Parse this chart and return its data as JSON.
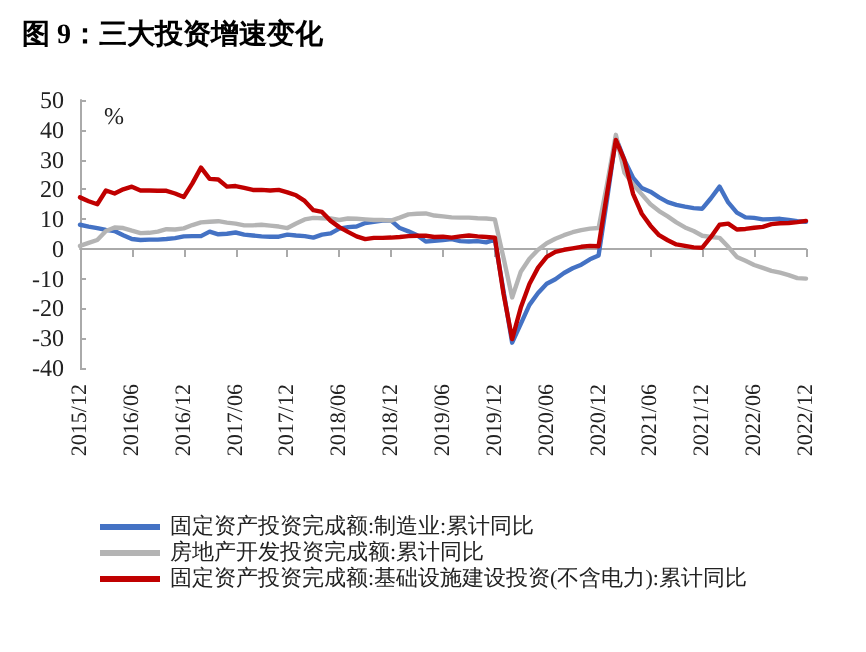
{
  "chart_data": {
    "type": "line",
    "title": "图 9：三大投资增速变化",
    "ylabel": "%",
    "categories": [
      "2015/12",
      null,
      null,
      null,
      null,
      null,
      "2016/06",
      null,
      null,
      null,
      null,
      null,
      "2016/12",
      null,
      null,
      null,
      null,
      null,
      "2017/06",
      null,
      null,
      null,
      null,
      null,
      "2017/12",
      null,
      null,
      null,
      null,
      null,
      "2018/06",
      null,
      null,
      null,
      null,
      null,
      "2018/12",
      null,
      null,
      null,
      null,
      null,
      "2019/06",
      null,
      null,
      null,
      null,
      null,
      "2019/12",
      null,
      null,
      null,
      null,
      null,
      "2020/06",
      null,
      null,
      null,
      null,
      null,
      "2020/12",
      null,
      null,
      null,
      null,
      null,
      "2021/06",
      null,
      null,
      null,
      null,
      null,
      "2021/12",
      null,
      null,
      null,
      null,
      null,
      "2022/06",
      null,
      null,
      null,
      null,
      null,
      "2022/12"
    ],
    "series": [
      {
        "name": "固定资产投资完成额:制造业:累计同比",
        "color": "#4472c4",
        "values": [
          8.1,
          7.5,
          7.0,
          6.4,
          6.0,
          4.6,
          3.3,
          3.0,
          3.1,
          3.1,
          3.3,
          3.6,
          4.2,
          4.3,
          4.3,
          5.8,
          4.9,
          5.1,
          5.5,
          4.8,
          4.5,
          4.2,
          4.1,
          4.1,
          4.8,
          4.5,
          4.3,
          3.8,
          4.8,
          5.2,
          6.8,
          7.3,
          7.5,
          8.7,
          9.1,
          9.5,
          9.5,
          7.0,
          5.9,
          4.6,
          2.5,
          2.7,
          3.0,
          3.3,
          2.6,
          2.5,
          2.6,
          2.2,
          3.1,
          -14.2,
          -31.5,
          -25.2,
          -18.8,
          -14.8,
          -11.7,
          -10.2,
          -8.1,
          -6.5,
          -5.3,
          -3.5,
          -2.2,
          17,
          37.3,
          29.8,
          23.8,
          20.4,
          19.2,
          17.3,
          15.7,
          14.8,
          14.2,
          13.7,
          13.5,
          17,
          20.9,
          15.6,
          12.2,
          10.6,
          10.4,
          9.9,
          10.0,
          10.1,
          9.7,
          9.3,
          9.1
        ]
      },
      {
        "name": "房地产开发投资完成额:累计同比",
        "color": "#b4b4b4",
        "values": [
          1.0,
          2,
          3.0,
          6.0,
          7.2,
          7.0,
          6.1,
          5.3,
          5.4,
          5.8,
          6.6,
          6.5,
          6.9,
          8,
          8.9,
          9.1,
          9.3,
          8.8,
          8.5,
          7.9,
          7.9,
          8.1,
          7.8,
          7.5,
          7.0,
          8.5,
          9.9,
          10.4,
          10.3,
          10.2,
          9.7,
          10.2,
          10.1,
          9.9,
          9.7,
          9.7,
          9.5,
          10.5,
          11.6,
          11.8,
          11.9,
          11.2,
          10.9,
          10.6,
          10.5,
          10.5,
          10.3,
          10.2,
          9.9,
          -3,
          -16.3,
          -7.7,
          -3.3,
          -0.3,
          1.9,
          3.4,
          4.6,
          5.6,
          6.3,
          6.8,
          7.0,
          22,
          38.3,
          25.6,
          21.6,
          18.3,
          15.0,
          12.7,
          10.9,
          8.9,
          7.2,
          6.0,
          4.4,
          4,
          3.7,
          0.7,
          -2.7,
          -4.0,
          -5.4,
          -6.4,
          -7.4,
          -8.0,
          -8.8,
          -9.8,
          -10.0
        ]
      },
      {
        "name": "固定资产投资完成额:基础设施建设投资(不含电力):累计同比",
        "color": "#c00000",
        "values": [
          17.3,
          16,
          15.0,
          19.6,
          18.6,
          20.0,
          20.9,
          19.6,
          19.6,
          19.5,
          19.5,
          18.6,
          17.4,
          22,
          27.3,
          23.5,
          23.3,
          20.9,
          21.1,
          20.5,
          19.8,
          19.8,
          19.6,
          19.8,
          19.0,
          18,
          16.1,
          13.0,
          12.4,
          9.4,
          7.3,
          5.7,
          4.2,
          3.3,
          3.7,
          3.7,
          3.8,
          4.0,
          4.3,
          4.4,
          4.4,
          4.0,
          4.1,
          3.8,
          4.2,
          4.5,
          4.2,
          4.0,
          3.8,
          -15,
          -30.3,
          -19.7,
          -11.8,
          -6.3,
          -2.7,
          -1.0,
          -0.3,
          0.2,
          0.7,
          1.0,
          0.9,
          19,
          36.6,
          29.7,
          18.4,
          11.8,
          7.8,
          4.6,
          2.9,
          1.5,
          1.0,
          0.5,
          0.4,
          4,
          8.1,
          8.5,
          6.5,
          6.7,
          7.1,
          7.4,
          8.3,
          8.6,
          8.7,
          9.0,
          9.4
        ]
      }
    ],
    "ylim": [
      -40,
      50
    ],
    "yticks": [
      -40,
      -30,
      -20,
      -10,
      0,
      10,
      20,
      30,
      40,
      50
    ],
    "legend": "bottom",
    "line_style": "solid"
  }
}
